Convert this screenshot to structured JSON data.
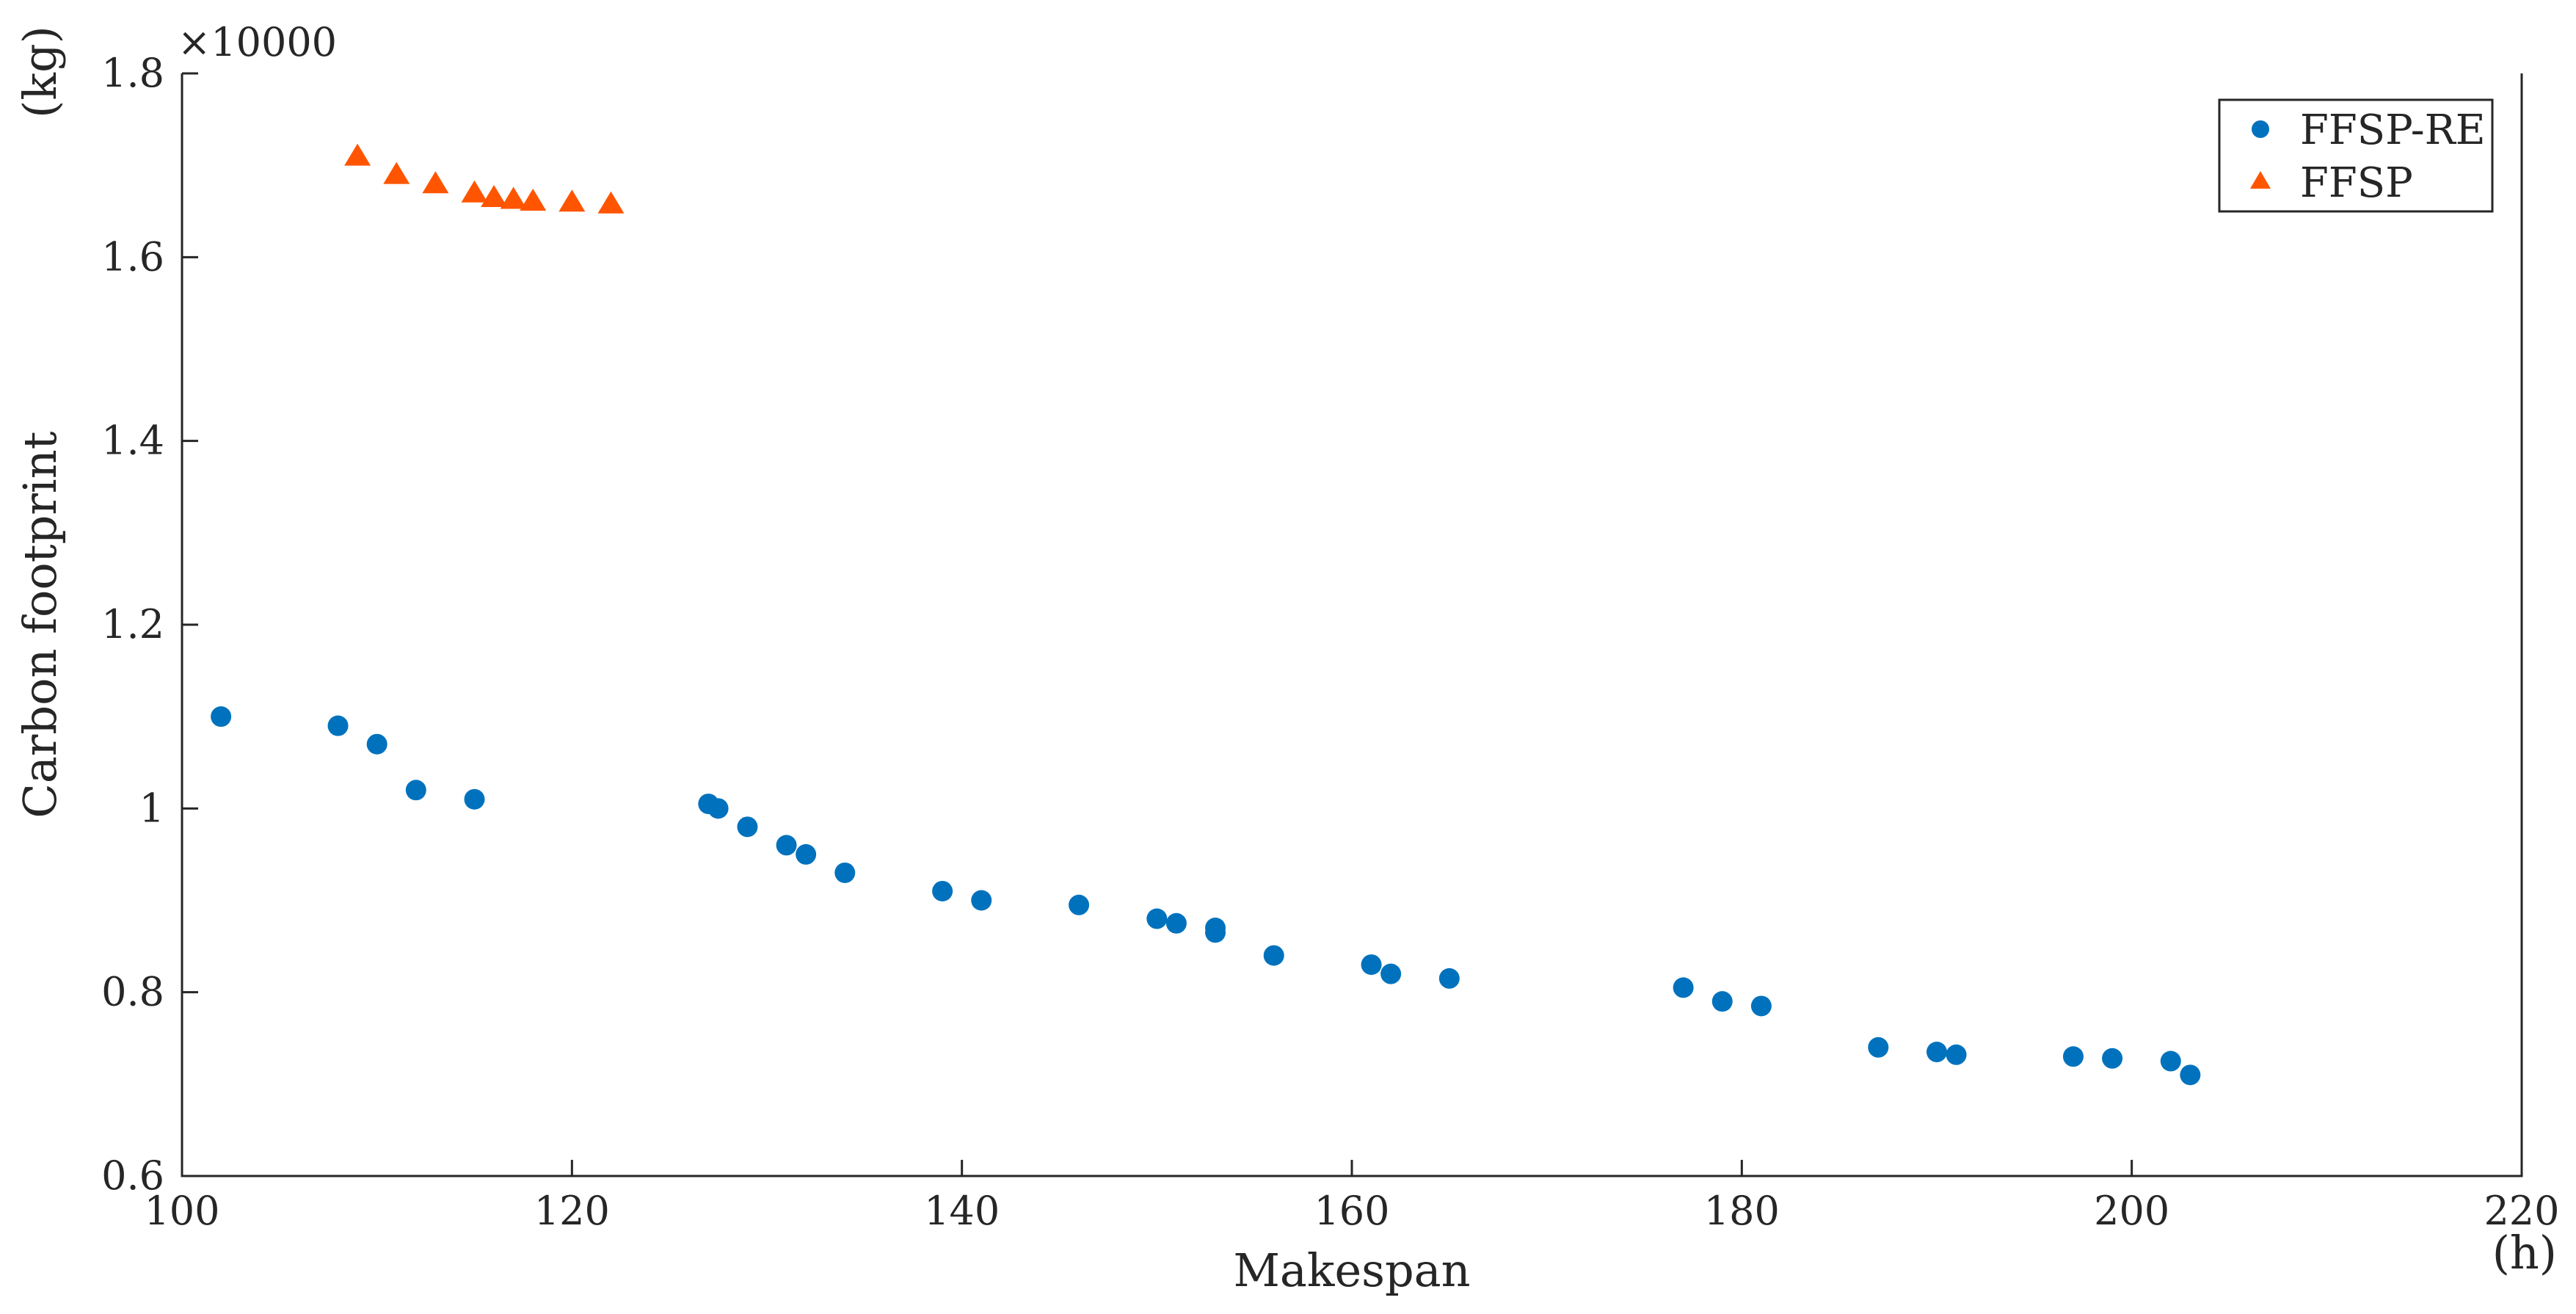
{
  "chart_data": {
    "type": "scatter",
    "title": "",
    "xlabel": "Makespan",
    "ylabel": "Carbon footprint",
    "x_unit": "(h)",
    "y_unit": "(kg)",
    "y_multiplier": "×10000",
    "xlim": [
      100,
      220
    ],
    "ylim": [
      0.6,
      1.8
    ],
    "xticks": [
      "100",
      "120",
      "140",
      "160",
      "180",
      "200",
      "220"
    ],
    "yticks": [
      "0.6",
      "0.8",
      "1",
      "1.2",
      "1.4",
      "1.6",
      "1.8"
    ],
    "grid": false,
    "legend_position": "top-right",
    "series": [
      {
        "name": "FFSP-RE",
        "marker": "circle",
        "color": "#0072BD",
        "points": [
          [
            102,
            1.1
          ],
          [
            108,
            1.09
          ],
          [
            110,
            1.07
          ],
          [
            112,
            1.02
          ],
          [
            115,
            1.01
          ],
          [
            127,
            1.005
          ],
          [
            127.5,
            1.0
          ],
          [
            129,
            0.98
          ],
          [
            131,
            0.96
          ],
          [
            132,
            0.95
          ],
          [
            134,
            0.93
          ],
          [
            139,
            0.91
          ],
          [
            141,
            0.9
          ],
          [
            146,
            0.895
          ],
          [
            150,
            0.88
          ],
          [
            151,
            0.875
          ],
          [
            153,
            0.87
          ],
          [
            153,
            0.865
          ],
          [
            156,
            0.84
          ],
          [
            161,
            0.83
          ],
          [
            162,
            0.82
          ],
          [
            165,
            0.815
          ],
          [
            177,
            0.805
          ],
          [
            179,
            0.79
          ],
          [
            181,
            0.785
          ],
          [
            187,
            0.74
          ],
          [
            190,
            0.735
          ],
          [
            191,
            0.732
          ],
          [
            197,
            0.73
          ],
          [
            199,
            0.728
          ],
          [
            202,
            0.725
          ],
          [
            203,
            0.71
          ]
        ]
      },
      {
        "name": "FFSP",
        "marker": "triangle",
        "color": "#FF5500",
        "points": [
          [
            109,
            1.71
          ],
          [
            111,
            1.69
          ],
          [
            113,
            1.68
          ],
          [
            115,
            1.67
          ],
          [
            116,
            1.665
          ],
          [
            117,
            1.663
          ],
          [
            118,
            1.661
          ],
          [
            120,
            1.66
          ],
          [
            122,
            1.658
          ]
        ]
      }
    ]
  }
}
